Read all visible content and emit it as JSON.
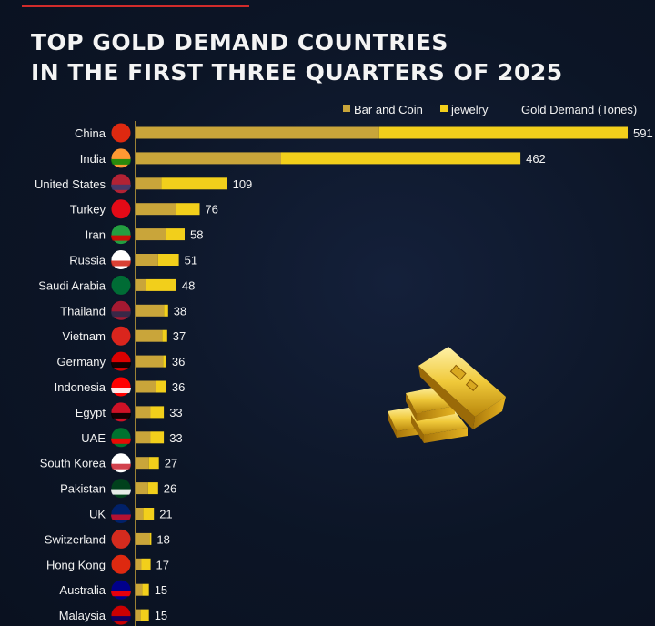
{
  "header": {
    "title_line1": "TOP GOLD DEMAND COUNTRIES",
    "title_line2": "IN THE FIRST THREE QUARTERS OF 2025"
  },
  "colors": {
    "bar_and_coin": "#c9a53a",
    "jewelry": "#f2cf1b",
    "background": "#0c1526"
  },
  "chart_data": {
    "type": "bar",
    "orientation": "horizontal",
    "stacked": true,
    "title": "TOP GOLD DEMAND COUNTRIES IN THE FIRST THREE QUARTERS OF 2025",
    "legend": [
      "Bar and Coin",
      "jewelry"
    ],
    "value_label": "Gold Demand (Tones)",
    "legend_position": "top-right",
    "xlim": [
      0,
      591
    ],
    "categories": [
      "China",
      "India",
      "United States",
      "Turkey",
      "Iran",
      "Russia",
      "Saudi Arabia",
      "Thailand",
      "Vietnam",
      "Germany",
      "Indonesia",
      "Egypt",
      "UAE",
      "South Korea",
      "Pakistan",
      "UK",
      "Switzerland",
      "Hong Kong",
      "Australia",
      "Malaysia"
    ],
    "totals": [
      591,
      462,
      109,
      76,
      58,
      51,
      48,
      38,
      37,
      36,
      36,
      33,
      33,
      27,
      26,
      21,
      18,
      17,
      15,
      15
    ],
    "series": [
      {
        "name": "Bar and Coin",
        "values": [
          292,
          174,
          30,
          48,
          35,
          26,
          12,
          33,
          31,
          32,
          24,
          17,
          17,
          15,
          14,
          8,
          16,
          6,
          7,
          5
        ]
      },
      {
        "name": "jewelry",
        "values": [
          299,
          288,
          79,
          28,
          23,
          25,
          36,
          5,
          6,
          4,
          12,
          16,
          16,
          12,
          12,
          13,
          2,
          11,
          8,
          10
        ]
      }
    ]
  }
}
